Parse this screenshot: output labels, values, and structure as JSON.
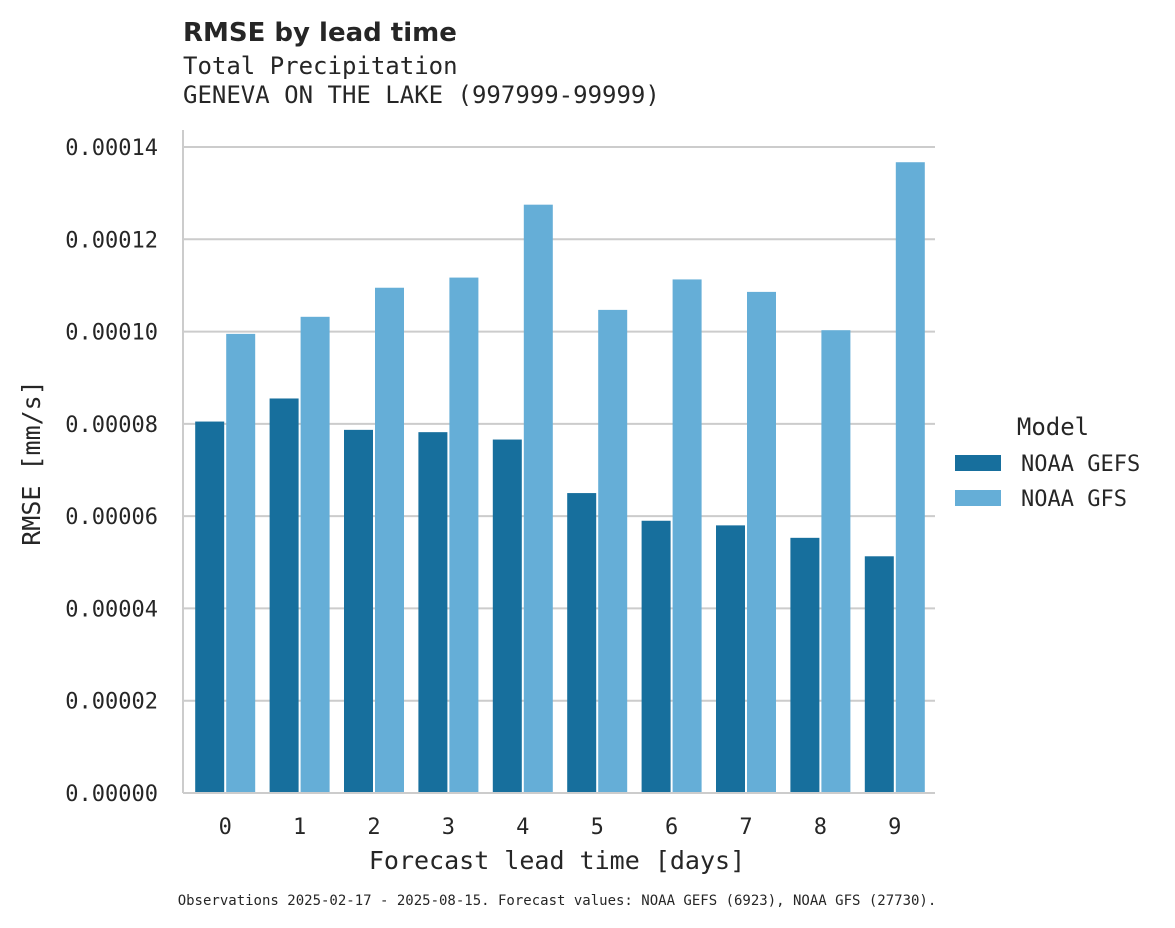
{
  "chart_data": {
    "type": "bar",
    "title": "RMSE by lead time",
    "subtitle_lines": [
      "Total Precipitation",
      "GENEVA ON THE LAKE (997999-99999)"
    ],
    "xlabel": "Forecast lead time [days]",
    "ylabel": "RMSE [mm/s]",
    "categories": [
      "0",
      "1",
      "2",
      "3",
      "4",
      "5",
      "6",
      "7",
      "8",
      "9"
    ],
    "ylim": [
      0,
      0.00014
    ],
    "yticks": [
      "0.00000",
      "0.00002",
      "0.00004",
      "0.00006",
      "0.00008",
      "0.00010",
      "0.00012",
      "0.00014"
    ],
    "grid": "horizontal",
    "legend_position": "right",
    "legend_title": "Model",
    "series": [
      {
        "name": "NOAA GEFS",
        "color": "#176f9d",
        "values": [
          8.05e-05,
          8.55e-05,
          7.87e-05,
          7.82e-05,
          7.66e-05,
          6.5e-05,
          5.9e-05,
          5.8e-05,
          5.53e-05,
          5.13e-05
        ]
      },
      {
        "name": "NOAA GFS",
        "color": "#65aed7",
        "values": [
          9.95e-05,
          0.0001032,
          0.0001095,
          0.0001117,
          0.0001275,
          0.0001047,
          0.0001113,
          0.0001086,
          0.0001003,
          0.0001367
        ]
      }
    ],
    "footnote": "Observations 2025-02-17 - 2025-08-15. Forecast values: NOAA GEFS (6923), NOAA GFS (27730)."
  }
}
